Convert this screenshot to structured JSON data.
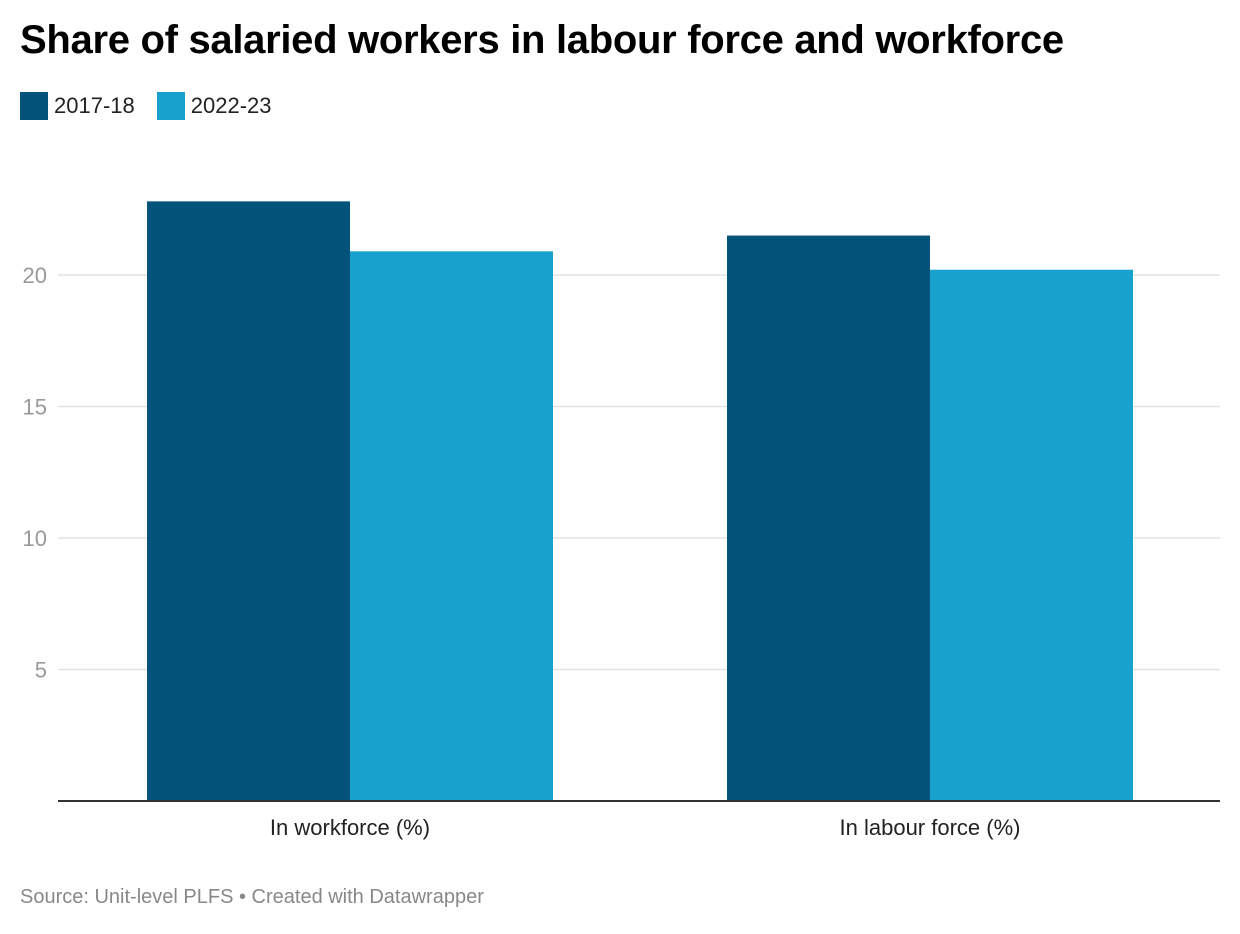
{
  "chart_data": {
    "type": "bar",
    "title": "Share of salaried workers in labour force and workforce",
    "categories": [
      "In workforce (%)",
      "In labour force (%)"
    ],
    "series": [
      {
        "name": "2017-18",
        "values": [
          22.8,
          21.5
        ],
        "color": "#03537a"
      },
      {
        "name": "2022-23",
        "values": [
          20.9,
          20.2
        ],
        "color": "#18a1cd"
      }
    ],
    "yticks": [
      5,
      10,
      15,
      20
    ],
    "ylim": [
      0,
      24.2
    ],
    "grid": true,
    "legend_position": "top-left",
    "xlabel": "",
    "ylabel": ""
  },
  "source_text": "Source: Unit-level PLFS • Created with Datawrapper"
}
